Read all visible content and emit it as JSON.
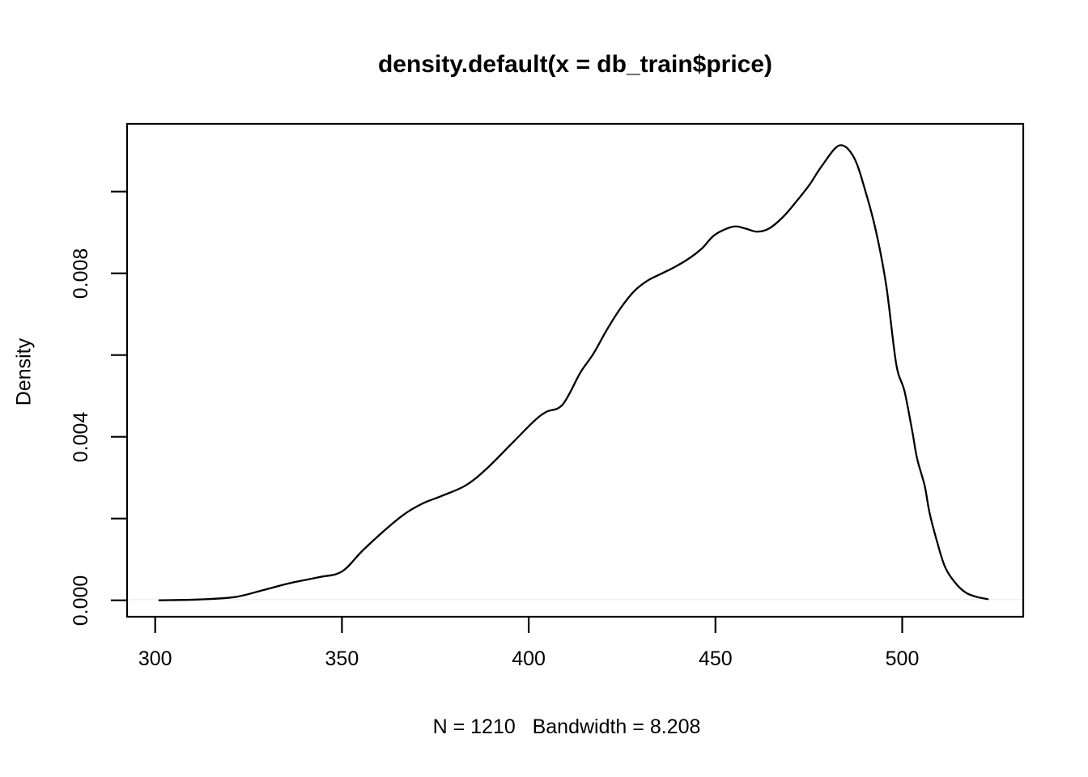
{
  "figure": {
    "title": "density.default(x = db_train$price)",
    "xlab": "N = 1210   Bandwidth = 8.208",
    "ylab": "Density"
  },
  "colors": {
    "background": "#ffffff",
    "curve": "#000000",
    "axis": "#000000",
    "text": "#000000",
    "zero_baseline_hint": "#f0f0f0"
  },
  "chart_data": {
    "type": "line",
    "title": "density.default(x = db_train$price)",
    "xlabel": "N = 1210   Bandwidth = 8.208",
    "ylabel": "Density",
    "n": 1210,
    "bandwidth": 8.208,
    "xlim": [
      292.5,
      532.4
    ],
    "ylim": [
      0,
      0.0117
    ],
    "grid": false,
    "legend": "none",
    "x_ticks": [
      300,
      350,
      400,
      450,
      500
    ],
    "x_tick_labels": [
      "300",
      "350",
      "400",
      "450",
      "500"
    ],
    "y_ticks": [
      0.0,
      0.002,
      0.004,
      0.006,
      0.008,
      0.01
    ],
    "y_tick_labels": [
      "0.000",
      "",
      "0.004",
      "",
      "0.008",
      ""
    ],
    "series": [
      {
        "name": "density of db_train$price",
        "x": [
          301.1,
          311.6,
          321.3,
          328.9,
          336.5,
          344.1,
          350.1,
          356.0,
          365.3,
          371.2,
          376.6,
          383.1,
          388.5,
          395.7,
          401.5,
          404.7,
          409.1,
          413.9,
          417.3,
          421.0,
          424.7,
          428.2,
          431.8,
          435.5,
          439.0,
          442.7,
          446.4,
          449.8,
          454.6,
          457.9,
          461.1,
          464.4,
          468.1,
          471.5,
          475.2,
          478.5,
          483.2,
          487.1,
          490.4,
          493.2,
          495.8,
          498.4,
          500.6,
          502.7,
          504.0,
          506.0,
          507.3,
          509.2,
          511.4,
          514.2,
          517.0,
          520.1,
          522.9
        ],
        "y": [
          0.0,
          2e-05,
          8e-05,
          0.00025,
          0.00043,
          0.00057,
          0.00071,
          0.00126,
          0.00201,
          0.00235,
          0.00255,
          0.00281,
          0.0032,
          0.00386,
          0.00439,
          0.00461,
          0.00479,
          0.00558,
          0.00603,
          0.00663,
          0.00716,
          0.00756,
          0.00782,
          0.00799,
          0.00815,
          0.00835,
          0.00861,
          0.00894,
          0.00914,
          0.0091,
          0.00902,
          0.0091,
          0.00938,
          0.00974,
          0.01017,
          0.01063,
          0.01113,
          0.01083,
          0.00993,
          0.00894,
          0.00766,
          0.00578,
          0.00512,
          0.00413,
          0.00346,
          0.00281,
          0.00215,
          0.00148,
          0.00083,
          0.00043,
          0.00019,
          8e-05,
          3e-05
        ]
      }
    ]
  }
}
